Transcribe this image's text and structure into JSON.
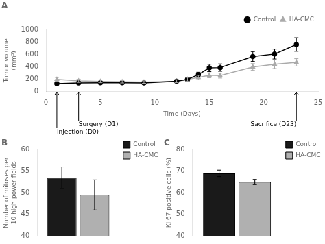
{
  "chart_data": [
    {
      "type": "line",
      "title": "A",
      "xlabel": "Time (Days)",
      "ylabel": "Tumor volume\n(mm³)",
      "xlim": [
        0,
        25
      ],
      "ylim": [
        0,
        1000
      ],
      "xticks": [
        0,
        5,
        10,
        15,
        20,
        25
      ],
      "yticks": [
        0,
        200,
        400,
        600,
        800,
        1000
      ],
      "grid": false,
      "legend": "top",
      "x": [
        1,
        3,
        5,
        7,
        9,
        12,
        13,
        14,
        15,
        16,
        19,
        21,
        23
      ],
      "series": [
        {
          "name": "Control",
          "color": "#000000",
          "marker": "circle",
          "values": [
            125,
            135,
            140,
            140,
            135,
            165,
            195,
            270,
            380,
            385,
            565,
            605,
            760
          ],
          "errors": [
            15,
            15,
            15,
            15,
            15,
            20,
            30,
            40,
            60,
            60,
            80,
            80,
            110
          ]
        },
        {
          "name": "HA-CMC",
          "color": "#aaaaaa",
          "marker": "triangle",
          "values": [
            195,
            170,
            160,
            155,
            150,
            165,
            195,
            225,
            260,
            255,
            395,
            440,
            470
          ],
          "errors": [
            30,
            25,
            20,
            20,
            20,
            25,
            30,
            35,
            40,
            40,
            55,
            70,
            60
          ]
        }
      ],
      "annotations": [
        {
          "text": "Surgery (D1)",
          "x": 3
        },
        {
          "text": "Injection (D0)",
          "x": 1
        },
        {
          "text": "Sacrifice (D23)",
          "x": 23
        }
      ]
    },
    {
      "type": "bar",
      "title": "B",
      "ylabel": "Number of mitoses per\n10 high-power fields",
      "categories": [
        null
      ],
      "ylim": [
        40,
        60
      ],
      "yticks": [
        40,
        45,
        50,
        55,
        60
      ],
      "grid": false,
      "legend": "right",
      "tick_labels": "y",
      "series": [
        {
          "name": "Control",
          "color": "#1a1a1a",
          "values": [
            53.5
          ],
          "errors": [
            2.5
          ]
        },
        {
          "name": "HA-CMC",
          "color": "#b0b0b0",
          "values": [
            49.5
          ],
          "errors": [
            3.5
          ]
        }
      ]
    },
    {
      "type": "bar",
      "title": "C",
      "ylabel": "Ki 67 positive cells (%)",
      "categories": [
        null
      ],
      "ylim": [
        40,
        80
      ],
      "yticks": [
        40,
        50,
        60,
        70,
        80
      ],
      "grid": false,
      "legend": "right",
      "tick_labels": "y",
      "series": [
        {
          "name": "Control",
          "color": "#1a1a1a",
          "values": [
            69
          ],
          "errors": [
            1.5
          ]
        },
        {
          "name": "HA-CMC",
          "color": "#b0b0b0",
          "values": [
            65
          ],
          "errors": [
            1.2
          ]
        }
      ]
    }
  ]
}
